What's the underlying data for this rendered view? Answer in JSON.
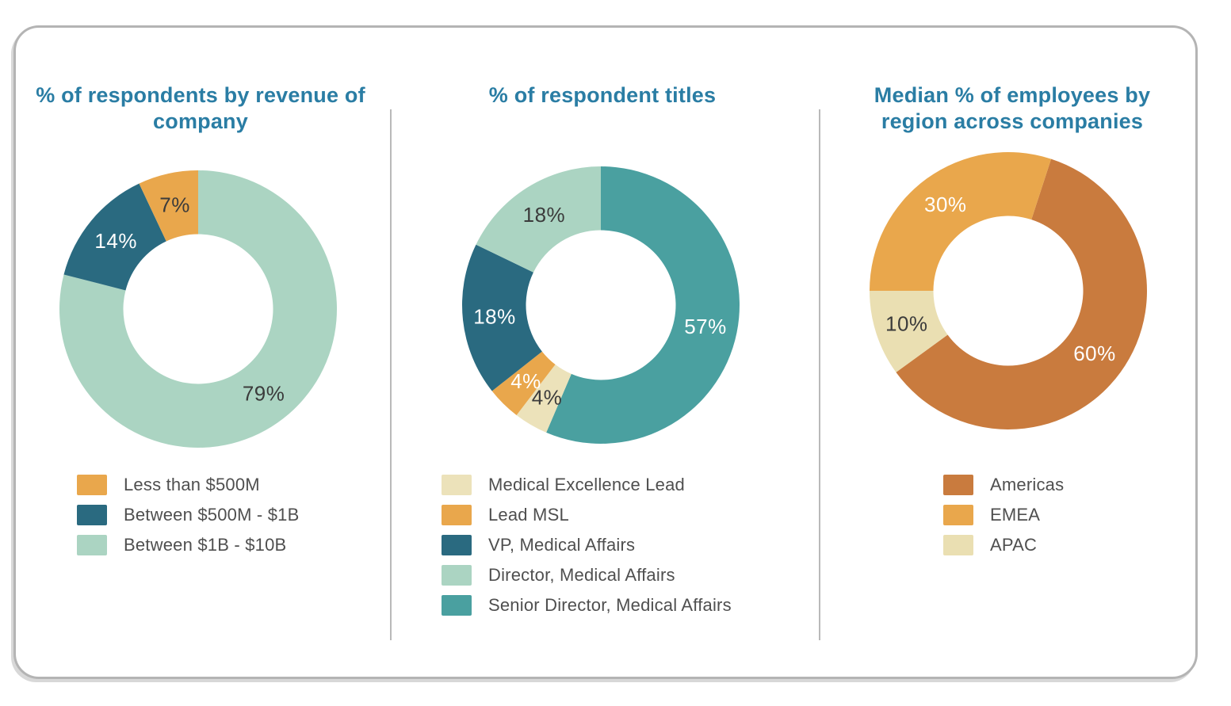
{
  "palette": {
    "heading_teal": "#2a7da4",
    "card_border": "#b4b4b4",
    "divider": "#b9b9b9",
    "dark_label": "#3b3b3b",
    "light_label": "#ffffff",
    "legend_text": "#4f4f4f"
  },
  "chart_data": [
    {
      "type": "donut",
      "title": "% of respondents by revenue of company",
      "start_angle": 0,
      "inner_radius_ratio": 0.54,
      "slices": [
        {
          "label": "Between $1B - $10B",
          "value": 79,
          "display": "79%",
          "color": "#abd4c2",
          "text_color": "#3b3b3b"
        },
        {
          "label": "Between $500M - $1B",
          "value": 14,
          "display": "14%",
          "color": "#2a6a80",
          "text_color": "#ffffff"
        },
        {
          "label": "Less than $500M",
          "value": 7,
          "display": "7%",
          "color": "#e9a74c",
          "text_color": "#3b3b3b"
        }
      ],
      "legend": [
        {
          "label": "Less than $500M",
          "color": "#e9a74c"
        },
        {
          "label": "Between $500M - $1B",
          "color": "#2a6a80"
        },
        {
          "label": "Between $1B - $10B",
          "color": "#abd4c2"
        }
      ]
    },
    {
      "type": "donut",
      "title": "% of respondent titles",
      "start_angle": 0,
      "inner_radius_ratio": 0.54,
      "slices": [
        {
          "label": "Senior Director, Medical Affairs",
          "value": 57,
          "display": "57%",
          "color": "#4aa0a0",
          "text_color": "#ffffff"
        },
        {
          "label": "Medical Excellence Lead",
          "value": 4,
          "display": "4%",
          "color": "#ece2ba",
          "text_color": "#3b3b3b"
        },
        {
          "label": "Lead MSL",
          "value": 4,
          "display": "4%",
          "color": "#e9a74c",
          "text_color": "#ffffff"
        },
        {
          "label": "VP, Medical Affairs",
          "value": 18,
          "display": "18%",
          "color": "#2a6a80",
          "text_color": "#ffffff"
        },
        {
          "label": "Director, Medical Affairs",
          "value": 18,
          "display": "18%",
          "color": "#abd4c2",
          "text_color": "#3b3b3b"
        }
      ],
      "legend": [
        {
          "label": "Medical Excellence Lead",
          "color": "#ece2ba"
        },
        {
          "label": "Lead MSL",
          "color": "#e9a74c"
        },
        {
          "label": "VP, Medical Affairs",
          "color": "#2a6a80"
        },
        {
          "label": "Director, Medical Affairs",
          "color": "#abd4c2"
        },
        {
          "label": "Senior Director, Medical Affairs",
          "color": "#4aa0a0"
        }
      ]
    },
    {
      "type": "donut",
      "title": "Median % of employees by region across companies",
      "start_angle": 18,
      "inner_radius_ratio": 0.54,
      "slices": [
        {
          "label": "Americas",
          "value": 60,
          "display": "60%",
          "color": "#c97b3e",
          "text_color": "#ffffff"
        },
        {
          "label": "APAC",
          "value": 10,
          "display": "10%",
          "color": "#eadfb2",
          "text_color": "#3b3b3b"
        },
        {
          "label": "EMEA",
          "value": 30,
          "display": "30%",
          "color": "#e9a74c",
          "text_color": "#ffffff"
        }
      ],
      "legend": [
        {
          "label": "Americas",
          "color": "#c97b3e"
        },
        {
          "label": "EMEA",
          "color": "#e9a74c"
        },
        {
          "label": "APAC",
          "color": "#eadfb2"
        }
      ]
    }
  ]
}
